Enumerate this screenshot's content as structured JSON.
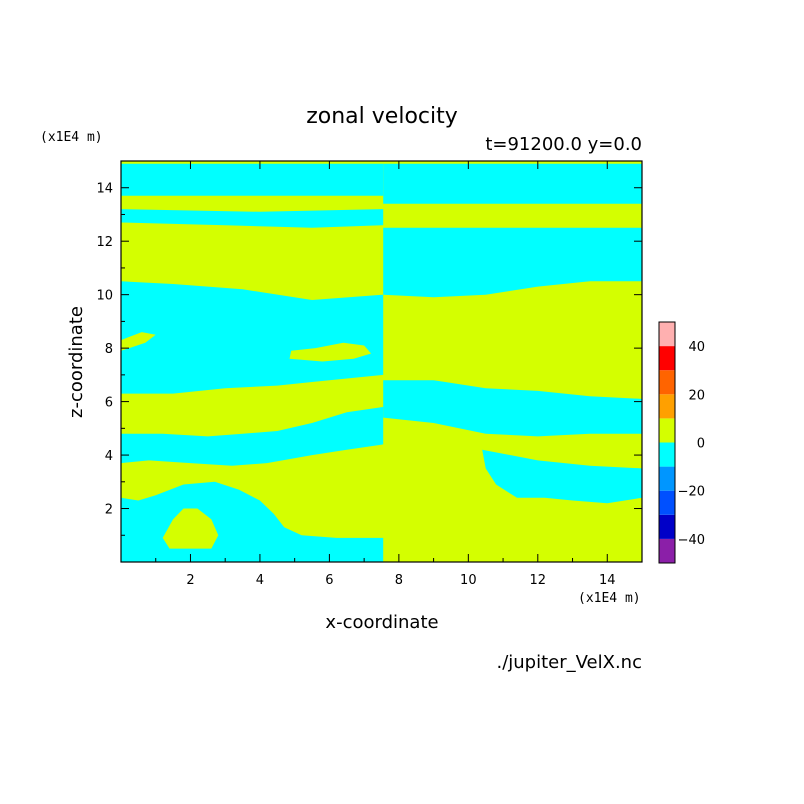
{
  "chart_data": {
    "type": "heatmap",
    "title": "zonal velocity",
    "subtitle": "t=91200.0 y=0.0",
    "xlabel": "x-coordinate",
    "ylabel": "z-coordinate",
    "x_unit": "(x1E4 m)",
    "y_unit": "(x1E4 m)",
    "xlim": [
      0,
      15
    ],
    "ylim": [
      0,
      15
    ],
    "x_ticks": [
      2,
      4,
      6,
      8,
      10,
      12,
      14
    ],
    "y_ticks": [
      2,
      4,
      6,
      8,
      10,
      12,
      14
    ],
    "source_file": "./jupiter_VelX.nc",
    "colorbar": {
      "min": -50,
      "max": 50,
      "levels": [
        -50,
        -40,
        -30,
        -20,
        -10,
        0,
        10,
        20,
        30,
        40,
        50
      ],
      "colors": [
        "#8b1fa8",
        "#0000c8",
        "#0050ff",
        "#0096ff",
        "#00ffff",
        "#d4ff00",
        "#ffa000",
        "#ff6400",
        "#ff0000",
        "#ffb0b0"
      ],
      "tick_labels": [
        -40,
        -20,
        0,
        20,
        40
      ]
    },
    "field_classes": {
      "positive_0_to_10": "#d4ff00",
      "negative_-10_to_0": "#00ffff"
    },
    "cyan_regions_left_half": [
      [
        [
          0,
          0
        ],
        [
          7.55,
          0
        ],
        [
          7.55,
          0.9
        ],
        [
          6.2,
          0.9
        ],
        [
          5.2,
          1.0
        ],
        [
          4.7,
          1.3
        ],
        [
          4.4,
          1.8
        ],
        [
          4.0,
          2.3
        ],
        [
          3.4,
          2.7
        ],
        [
          2.7,
          3.0
        ],
        [
          1.8,
          2.9
        ],
        [
          1.0,
          2.5
        ],
        [
          0.5,
          2.3
        ],
        [
          0,
          2.4
        ]
      ],
      [
        [
          0,
          3.7
        ],
        [
          0.8,
          3.8
        ],
        [
          2.0,
          3.7
        ],
        [
          3.2,
          3.6
        ],
        [
          4.2,
          3.7
        ],
        [
          5.5,
          4.0
        ],
        [
          6.5,
          4.2
        ],
        [
          7.55,
          4.4
        ],
        [
          7.55,
          5.8
        ],
        [
          6.5,
          5.6
        ],
        [
          5.5,
          5.2
        ],
        [
          4.5,
          4.9
        ],
        [
          3.5,
          4.8
        ],
        [
          2.5,
          4.7
        ],
        [
          1.2,
          4.8
        ],
        [
          0,
          4.8
        ]
      ],
      [
        [
          0,
          6.3
        ],
        [
          1.5,
          6.3
        ],
        [
          3.0,
          6.5
        ],
        [
          4.5,
          6.6
        ],
        [
          6.0,
          6.8
        ],
        [
          7.55,
          7.0
        ],
        [
          7.55,
          10.0
        ],
        [
          5.5,
          9.8
        ],
        [
          3.5,
          10.2
        ],
        [
          1.5,
          10.4
        ],
        [
          0,
          10.5
        ]
      ],
      [
        [
          0,
          12.7
        ],
        [
          3.0,
          12.6
        ],
        [
          5.5,
          12.5
        ],
        [
          7.55,
          12.6
        ],
        [
          7.55,
          13.2
        ],
        [
          4.0,
          13.1
        ],
        [
          0,
          13.2
        ]
      ],
      [
        [
          0,
          13.7
        ],
        [
          7.55,
          13.7
        ],
        [
          7.55,
          14.9
        ],
        [
          0,
          14.9
        ]
      ]
    ],
    "cyan_regions_right_half": [
      [
        [
          7.55,
          6.8
        ],
        [
          9.0,
          6.8
        ],
        [
          10.5,
          6.5
        ],
        [
          12.0,
          6.4
        ],
        [
          13.5,
          6.2
        ],
        [
          15,
          6.1
        ],
        [
          15,
          4.8
        ],
        [
          13.5,
          4.8
        ],
        [
          12.0,
          4.7
        ],
        [
          10.5,
          4.8
        ],
        [
          9.0,
          5.2
        ],
        [
          7.55,
          5.4
        ]
      ],
      [
        [
          7.55,
          10.0
        ],
        [
          9.0,
          9.9
        ],
        [
          10.5,
          10.0
        ],
        [
          12.0,
          10.3
        ],
        [
          13.5,
          10.5
        ],
        [
          15,
          10.5
        ],
        [
          15,
          12.5
        ],
        [
          7.55,
          12.5
        ]
      ],
      [
        [
          7.55,
          13.4
        ],
        [
          15,
          13.4
        ],
        [
          15,
          14.9
        ],
        [
          7.55,
          14.9
        ]
      ],
      [
        [
          10.4,
          4.2
        ],
        [
          12.0,
          3.8
        ],
        [
          13.5,
          3.6
        ],
        [
          15,
          3.5
        ],
        [
          15,
          2.4
        ],
        [
          14.0,
          2.2
        ],
        [
          13.0,
          2.3
        ],
        [
          12.2,
          2.4
        ],
        [
          11.4,
          2.4
        ],
        [
          10.8,
          2.9
        ],
        [
          10.5,
          3.5
        ]
      ]
    ],
    "yellow_islands": [
      [
        [
          4.85,
          7.6
        ],
        [
          5.8,
          7.5
        ],
        [
          6.7,
          7.6
        ],
        [
          7.2,
          7.8
        ],
        [
          7.0,
          8.1
        ],
        [
          6.4,
          8.2
        ],
        [
          5.6,
          8.0
        ],
        [
          4.9,
          7.9
        ]
      ],
      [
        [
          0,
          7.9
        ],
        [
          0.7,
          8.2
        ],
        [
          1.0,
          8.5
        ],
        [
          0.6,
          8.6
        ],
        [
          0,
          8.3
        ]
      ],
      [
        [
          1.2,
          0.9
        ],
        [
          1.5,
          1.6
        ],
        [
          1.8,
          2.0
        ],
        [
          2.2,
          2.0
        ],
        [
          2.6,
          1.6
        ],
        [
          2.8,
          1.0
        ],
        [
          2.6,
          0.5
        ],
        [
          2.0,
          0.5
        ],
        [
          1.4,
          0.5
        ]
      ]
    ]
  }
}
